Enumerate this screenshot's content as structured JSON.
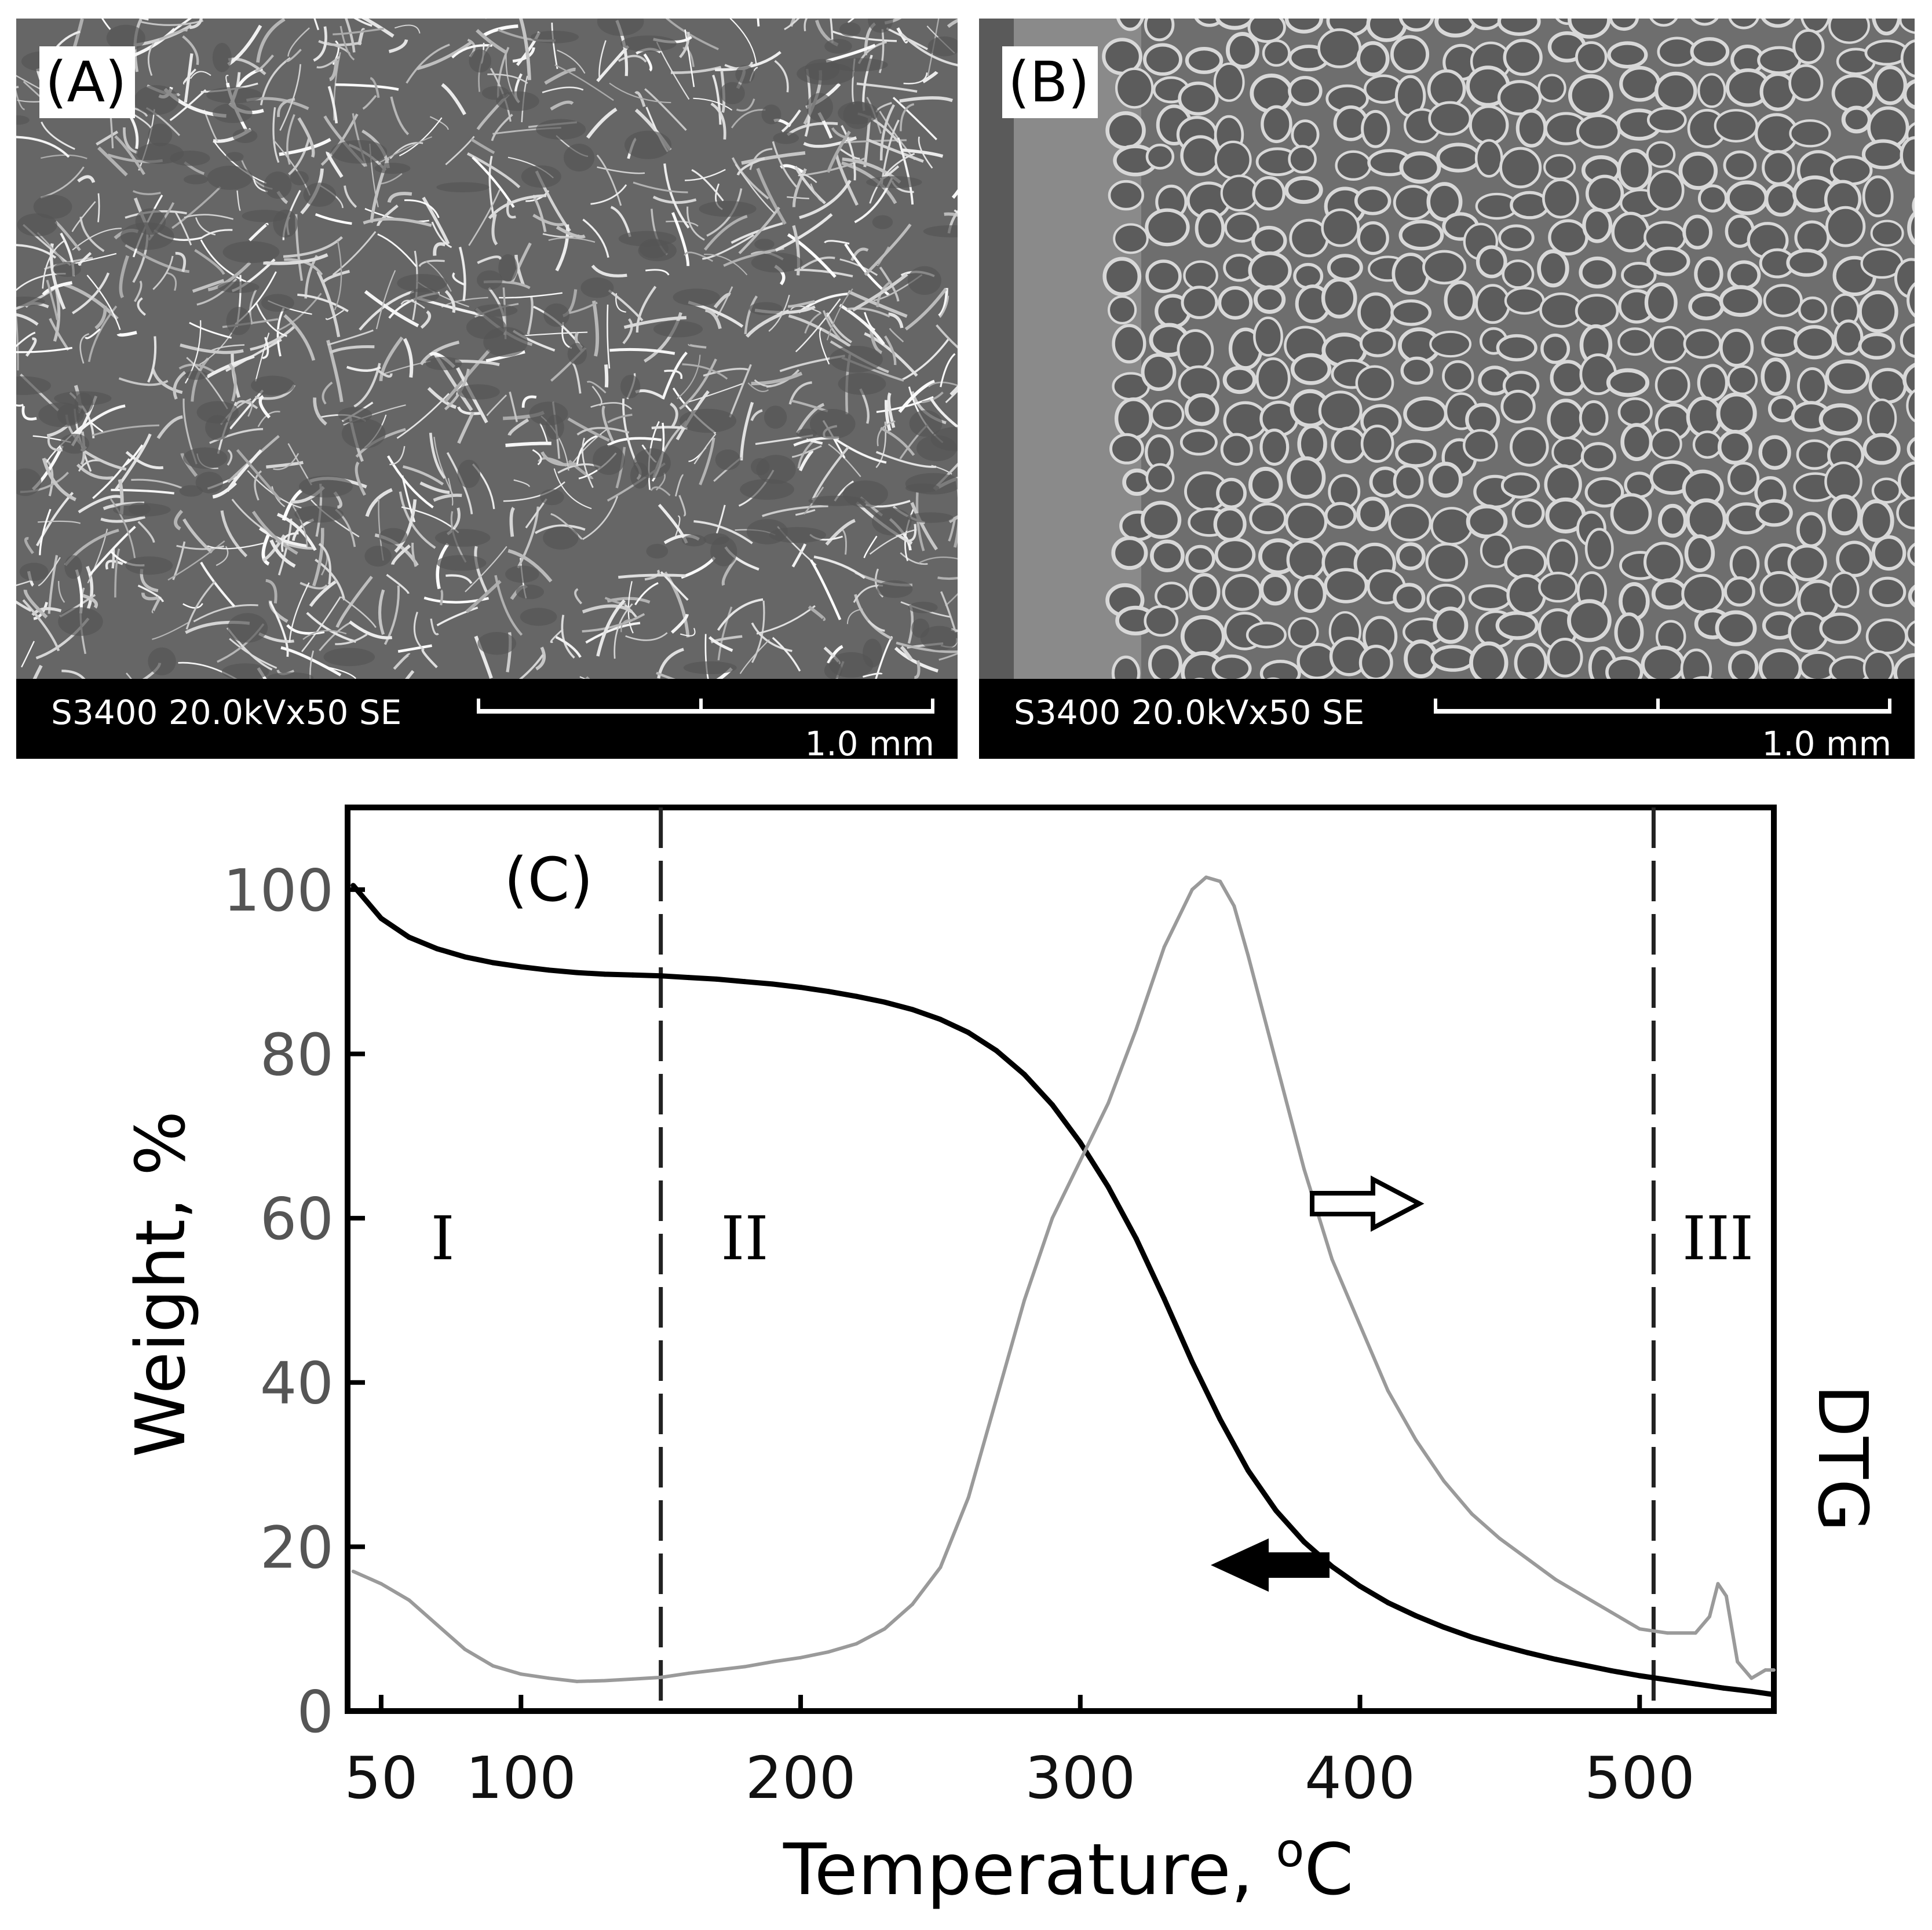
{
  "panels": [
    {
      "label": "(A)",
      "info": "S3400 20.0kVx50 SE",
      "scale": "1.0 mm"
    },
    {
      "label": "(B)",
      "info": "S3400 20.0kVx50 SE",
      "scale": "1.0 mm"
    }
  ],
  "chart_data": {
    "type": "line",
    "panel_label": "(C)",
    "xlabel": "Temperature, °C",
    "xlabel_main": "Temperature, ",
    "xlabel_sup": "o",
    "xlabel_end": "C",
    "ylabel": "Weight, %",
    "ylabel_right": "DTG",
    "xlim": [
      38,
      548
    ],
    "ylim": [
      0,
      110
    ],
    "xticks": [
      50,
      100,
      200,
      300,
      400,
      500
    ],
    "yticks": [
      0,
      20,
      40,
      60,
      80,
      100
    ],
    "grid": false,
    "regions": [
      {
        "label": "I",
        "x": 72
      },
      {
        "label": "II",
        "x": 180
      },
      {
        "label": "III",
        "x": 528
      }
    ],
    "boundaries": [
      150,
      505
    ],
    "series": [
      {
        "role": "weight",
        "color": "#000000",
        "x": [
          40,
          50,
          60,
          70,
          80,
          90,
          100,
          110,
          120,
          130,
          140,
          150,
          160,
          170,
          180,
          190,
          200,
          210,
          220,
          230,
          240,
          250,
          260,
          270,
          280,
          290,
          300,
          310,
          320,
          330,
          340,
          350,
          360,
          370,
          380,
          390,
          400,
          410,
          420,
          430,
          440,
          450,
          460,
          470,
          480,
          490,
          500,
          510,
          520,
          530,
          540,
          548
        ],
        "values": [
          100.5,
          96.5,
          94.2,
          92.8,
          91.8,
          91.1,
          90.6,
          90.2,
          89.9,
          89.7,
          89.6,
          89.5,
          89.3,
          89.1,
          88.8,
          88.5,
          88.1,
          87.6,
          87.0,
          86.3,
          85.4,
          84.2,
          82.6,
          80.4,
          77.5,
          73.8,
          69.2,
          63.8,
          57.5,
          50.2,
          42.5,
          35.5,
          29.3,
          24.4,
          20.6,
          17.6,
          15.2,
          13.2,
          11.6,
          10.2,
          9.0,
          8.0,
          7.1,
          6.3,
          5.6,
          4.9,
          4.3,
          3.8,
          3.3,
          2.8,
          2.4,
          2.0
        ]
      },
      {
        "role": "DTG",
        "color": "#9a9a9a",
        "x": [
          40,
          50,
          60,
          70,
          80,
          90,
          100,
          110,
          120,
          130,
          140,
          150,
          160,
          170,
          180,
          190,
          200,
          210,
          220,
          230,
          240,
          250,
          260,
          270,
          280,
          290,
          300,
          310,
          320,
          330,
          340,
          345,
          350,
          355,
          360,
          370,
          380,
          390,
          400,
          410,
          420,
          430,
          440,
          450,
          460,
          470,
          480,
          490,
          500,
          510,
          520,
          525,
          528,
          531,
          535,
          540,
          545,
          548
        ],
        "values": [
          17,
          15.5,
          13.5,
          10.5,
          7.5,
          5.5,
          4.5,
          4,
          3.6,
          3.7,
          3.9,
          4.1,
          4.6,
          5,
          5.4,
          6,
          6.5,
          7.2,
          8.2,
          10,
          13,
          17.5,
          26,
          38,
          50,
          60,
          67,
          74,
          83,
          93,
          100,
          101.5,
          101,
          98,
          92,
          79,
          66,
          55,
          47,
          39,
          33,
          28,
          24,
          21,
          18.5,
          16,
          14,
          12,
          10,
          9.5,
          9.5,
          11.5,
          15.5,
          14,
          6,
          4,
          5,
          5
        ]
      }
    ]
  }
}
